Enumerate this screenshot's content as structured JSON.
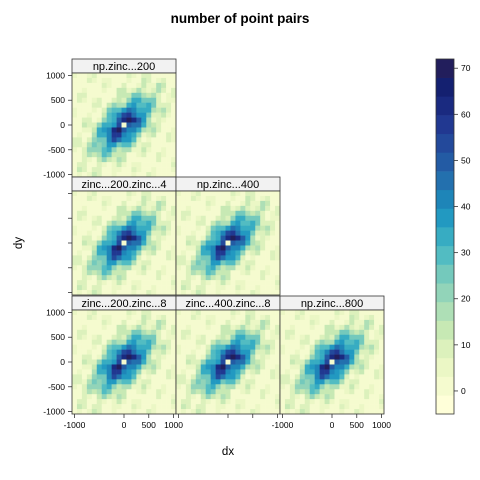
{
  "chart_data": {
    "type": "heatmap",
    "title": "number of point pairs",
    "xlabel": "dx",
    "ylabel": "dy",
    "xlim": [
      -1050,
      1050
    ],
    "ylim": [
      -1050,
      1050
    ],
    "x_ticks": [
      -1000,
      0,
      500,
      1000
    ],
    "x_tick_labels": [
      "-1000",
      "0",
      "500",
      "1000"
    ],
    "y_ticks": [
      1000,
      500,
      0,
      -500,
      -1000
    ],
    "y_tick_labels": [
      "1000",
      "500",
      "0",
      "-500",
      "-1000"
    ],
    "grid": false,
    "legend": "right colorbar",
    "colorbar": {
      "min": -5,
      "max": 72,
      "ticks": [
        0,
        10,
        20,
        30,
        40,
        50,
        60,
        70
      ],
      "colors": [
        "#ffffd9",
        "#f5fbcf",
        "#ebf7c5",
        "#dcf1bc",
        "#c7e9b4",
        "#aedfb6",
        "#92d4b9",
        "#74c9bc",
        "#52bcc2",
        "#37acc2",
        "#2299c1",
        "#1e85b8",
        "#2370ae",
        "#235ba4",
        "#23499b",
        "#213891",
        "#1a2a80",
        "#142070",
        "#221e5c"
      ]
    },
    "panels": [
      {
        "label": "np.zinc...200",
        "row": 0,
        "col": 0
      },
      {
        "label": "zinc...200.zinc...4",
        "row": 1,
        "col": 0
      },
      {
        "label": "np.zinc...400",
        "row": 1,
        "col": 1
      },
      {
        "label": "zinc...200.zinc...8",
        "row": 2,
        "col": 0
      },
      {
        "label": "zinc...400.zinc...8",
        "row": 2,
        "col": 1
      },
      {
        "label": "np.zinc...800",
        "row": 2,
        "col": 2
      }
    ],
    "grid_bins": 21,
    "peak_value": 70,
    "center_value": 0
  }
}
